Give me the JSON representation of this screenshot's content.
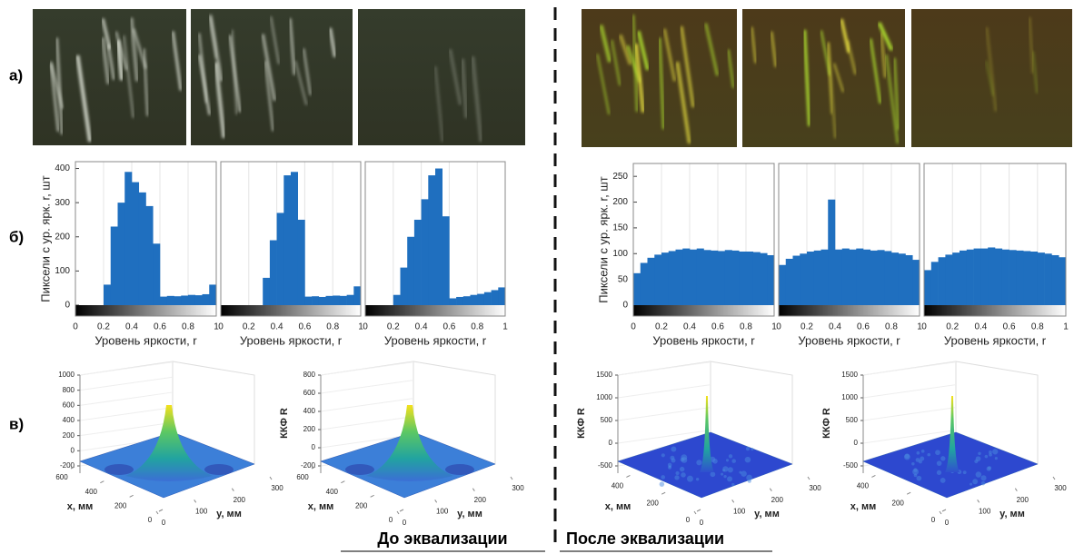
{
  "panel_labels": [
    "а)",
    "б)",
    "в)"
  ],
  "captions": [
    "До эквализации",
    "После эквализации"
  ],
  "chart_data": [
    {
      "type": "histogram",
      "ylabel": "Пиксели с ур. ярк. r, шт",
      "xlabel": "Уровень яркости, r",
      "color": "#1f6fbf",
      "bins": [
        0,
        0.05,
        0.1,
        0.15,
        0.2,
        0.25,
        0.3,
        0.35,
        0.4,
        0.45,
        0.5,
        0.55,
        0.6,
        0.65,
        0.7,
        0.75,
        0.8,
        0.85,
        0.9,
        0.95,
        1
      ],
      "values": [
        0,
        0,
        0,
        0,
        60,
        230,
        300,
        390,
        360,
        330,
        290,
        180,
        25,
        27,
        26,
        28,
        30,
        29,
        32,
        60
      ],
      "xlim": [
        0,
        1
      ],
      "ylim": [
        0,
        420
      ],
      "xticks": [
        0,
        0.2,
        0.4,
        0.6,
        0.8,
        1
      ],
      "yticks": [
        0,
        100,
        200,
        300,
        400
      ]
    },
    {
      "type": "histogram",
      "xlabel": "Уровень яркости, r",
      "color": "#1f6fbf",
      "bins": [
        0,
        0.05,
        0.1,
        0.15,
        0.2,
        0.25,
        0.3,
        0.35,
        0.4,
        0.45,
        0.5,
        0.55,
        0.6,
        0.65,
        0.7,
        0.75,
        0.8,
        0.85,
        0.9,
        0.95,
        1
      ],
      "values": [
        0,
        0,
        0,
        0,
        0,
        0,
        80,
        190,
        270,
        380,
        390,
        250,
        25,
        26,
        24,
        27,
        28,
        27,
        30,
        55
      ],
      "xlim": [
        0,
        1
      ],
      "ylim": [
        0,
        420
      ],
      "xticks": [
        0,
        0.2,
        0.4,
        0.6,
        0.8,
        1
      ]
    },
    {
      "type": "histogram",
      "xlabel": "Уровень яркости, r",
      "color": "#1f6fbf",
      "bins": [
        0,
        0.05,
        0.1,
        0.15,
        0.2,
        0.25,
        0.3,
        0.35,
        0.4,
        0.45,
        0.5,
        0.55,
        0.6,
        0.65,
        0.7,
        0.75,
        0.8,
        0.85,
        0.9,
        0.95,
        1
      ],
      "values": [
        0,
        0,
        0,
        0,
        30,
        110,
        200,
        250,
        310,
        380,
        400,
        260,
        20,
        24,
        26,
        30,
        33,
        38,
        44,
        52
      ],
      "xlim": [
        0,
        1
      ],
      "ylim": [
        0,
        420
      ],
      "xticks": [
        0,
        0.2,
        0.4,
        0.6,
        0.8,
        1
      ]
    },
    {
      "type": "histogram",
      "ylabel": "Пиксели с ур. ярк. r, шт",
      "xlabel": "Уровень яркости, r",
      "color": "#1f6fbf",
      "bins": [
        0,
        0.05,
        0.1,
        0.15,
        0.2,
        0.25,
        0.3,
        0.35,
        0.4,
        0.45,
        0.5,
        0.55,
        0.6,
        0.65,
        0.7,
        0.75,
        0.8,
        0.85,
        0.9,
        0.95,
        1
      ],
      "values": [
        62,
        82,
        92,
        98,
        102,
        105,
        108,
        110,
        108,
        110,
        107,
        106,
        105,
        107,
        106,
        104,
        104,
        103,
        101,
        97
      ],
      "xlim": [
        0,
        1
      ],
      "ylim": [
        0,
        275
      ],
      "xticks": [
        0,
        0.2,
        0.4,
        0.6,
        0.8,
        1
      ],
      "yticks": [
        0,
        50,
        100,
        150,
        200,
        250
      ]
    },
    {
      "type": "histogram",
      "xlabel": "Уровень яркости, r",
      "color": "#1f6fbf",
      "bins": [
        0,
        0.05,
        0.1,
        0.15,
        0.2,
        0.25,
        0.3,
        0.35,
        0.4,
        0.45,
        0.5,
        0.55,
        0.6,
        0.65,
        0.7,
        0.75,
        0.8,
        0.85,
        0.9,
        0.95,
        1
      ],
      "values": [
        78,
        90,
        96,
        100,
        104,
        106,
        108,
        205,
        108,
        110,
        108,
        110,
        108,
        106,
        107,
        105,
        102,
        100,
        97,
        88
      ],
      "xlim": [
        0,
        1
      ],
      "ylim": [
        0,
        275
      ],
      "xticks": [
        0,
        0.2,
        0.4,
        0.6,
        0.8,
        1
      ]
    },
    {
      "type": "histogram",
      "xlabel": "Уровень яркости, r",
      "color": "#1f6fbf",
      "bins": [
        0,
        0.05,
        0.1,
        0.15,
        0.2,
        0.25,
        0.3,
        0.35,
        0.4,
        0.45,
        0.5,
        0.55,
        0.6,
        0.65,
        0.7,
        0.75,
        0.8,
        0.85,
        0.9,
        0.95,
        1
      ],
      "values": [
        68,
        84,
        93,
        98,
        102,
        106,
        108,
        110,
        110,
        112,
        110,
        108,
        107,
        106,
        105,
        104,
        102,
        100,
        97,
        93
      ],
      "xlim": [
        0,
        1
      ],
      "ylim": [
        0,
        275
      ],
      "xticks": [
        0,
        0.2,
        0.4,
        0.6,
        0.8,
        1
      ]
    },
    {
      "type": "surface",
      "xlabel": "x, мм",
      "ylabel": "y, мм",
      "zlim": [
        -200,
        1000
      ],
      "zticks": [
        -200,
        0,
        200,
        400,
        600,
        800,
        1000
      ],
      "xlim": [
        0,
        600
      ],
      "xticks": [
        0,
        200,
        400,
        600
      ],
      "ylim": [
        0,
        300
      ],
      "yticks": [
        0,
        100,
        200,
        300
      ]
    },
    {
      "type": "surface",
      "zlabel": "ККФ R",
      "xlabel": "x, мм",
      "ylabel": "y, мм",
      "zlim": [
        -200,
        800
      ],
      "zticks": [
        -200,
        0,
        200,
        400,
        600,
        800
      ],
      "xlim": [
        0,
        600
      ],
      "xticks": [
        0,
        200,
        400,
        600
      ],
      "ylim": [
        0,
        300
      ],
      "yticks": [
        0,
        100,
        200,
        300
      ]
    },
    {
      "type": "surface",
      "zlabel": "ККФ R",
      "xlabel": "x, мм",
      "ylabel": "y, мм",
      "zlim": [
        -500,
        1500
      ],
      "zticks": [
        -500,
        0,
        500,
        1000,
        1500
      ],
      "xlim": [
        0,
        500
      ],
      "xticks": [
        0,
        200,
        400
      ],
      "ylim": [
        0,
        300
      ],
      "yticks": [
        0,
        100,
        200,
        300
      ]
    },
    {
      "type": "surface",
      "zlabel": "ККФ R",
      "xlabel": "x, мм",
      "ylabel": "y, мм",
      "zlim": [
        -500,
        1500
      ],
      "zticks": [
        -500,
        0,
        500,
        1000,
        1500
      ],
      "xlim": [
        0,
        500
      ],
      "xticks": [
        0,
        200,
        400
      ],
      "ylim": [
        0,
        300
      ],
      "yticks": [
        0,
        100,
        200,
        300
      ]
    }
  ]
}
